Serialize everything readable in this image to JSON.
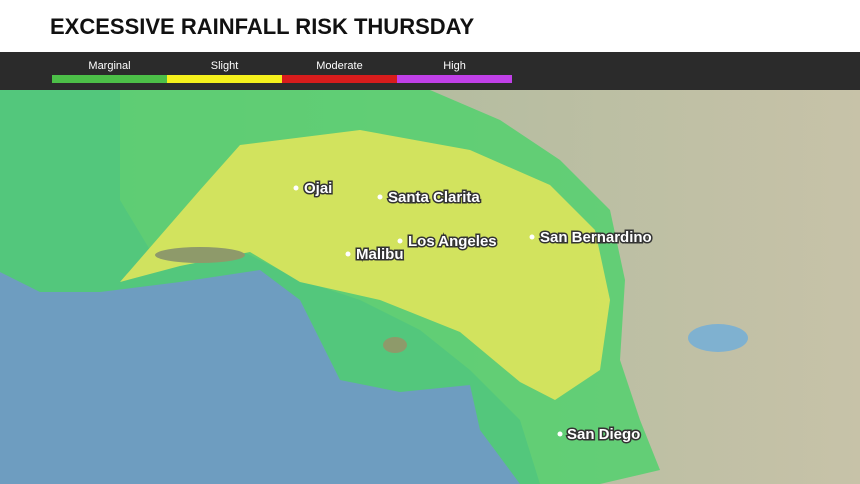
{
  "header": {
    "title": "EXCESSIVE RAINFALL RISK THURSDAY"
  },
  "legend": [
    {
      "label": "Marginal",
      "color": "#4cbf48"
    },
    {
      "label": "Slight",
      "color": "#f5f01c"
    },
    {
      "label": "Moderate",
      "color": "#d81c1c"
    },
    {
      "label": "High",
      "color": "#c040e8"
    }
  ],
  "cities": [
    "Ojai",
    "Santa Clarita",
    "Los Angeles",
    "Malibu",
    "San Bernardino",
    "San Diego"
  ]
}
